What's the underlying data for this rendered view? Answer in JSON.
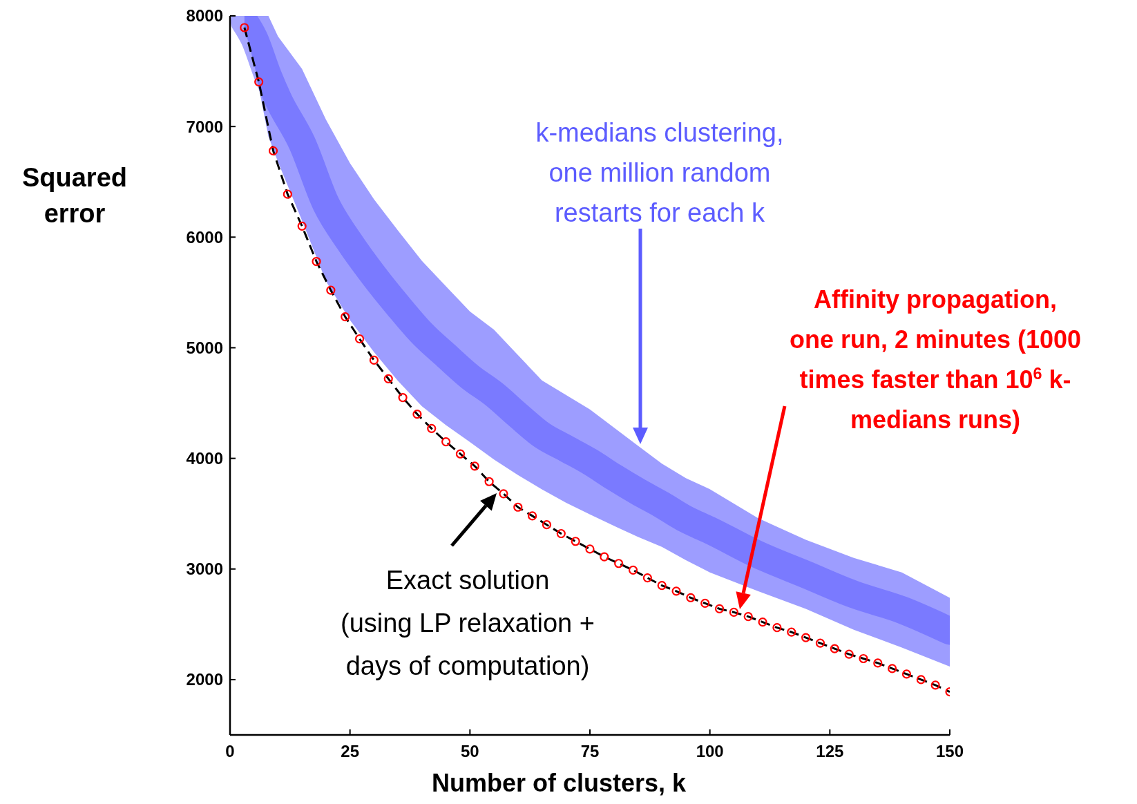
{
  "chart_data": {
    "type": "line",
    "xlabel": "Number of clusters, k",
    "ylabel": "Squared\nerror",
    "xlim": [
      0,
      150
    ],
    "ylim": [
      1500,
      8000
    ],
    "xticks": [
      0,
      25,
      50,
      75,
      100,
      125,
      150
    ],
    "yticks": [
      2000,
      3000,
      4000,
      5000,
      6000,
      7000,
      8000
    ],
    "series": [
      {
        "color": "#5c5cff",
        "x": [
          3,
          5,
          8,
          10,
          15,
          20,
          25,
          30,
          35,
          40,
          45,
          50,
          55,
          60,
          65,
          70,
          75,
          80,
          85,
          90,
          95,
          100,
          110,
          120,
          130,
          140,
          150
        ],
        "values": [
          7950,
          7800,
          7450,
          7250,
          6850,
          6300,
          5950,
          5650,
          5380,
          5130,
          4930,
          4737,
          4580,
          4390,
          4210,
          4090,
          3970,
          3830,
          3700,
          3580,
          3450,
          3350,
          3130,
          2950,
          2770,
          2630,
          2440
        ],
        "lower": [
          7894,
          7573,
          6911,
          6680,
          6150,
          5600,
          5250,
          4960,
          4700,
          4470,
          4300,
          4148,
          3990,
          3850,
          3720,
          3600,
          3493,
          3390,
          3290,
          3200,
          3080,
          2969,
          2800,
          2640,
          2450,
          2290,
          2118
        ],
        "upper": [
          8000,
          8000,
          8000,
          7815,
          7520,
          7062,
          6669,
          6342,
          6060,
          5785,
          5556,
          5327,
          5163,
          4934,
          4705,
          4574,
          4443,
          4279,
          4115,
          3952,
          3821,
          3722,
          3460,
          3264,
          3100,
          2969,
          2740
        ]
      },
      {
        "color": "#000000",
        "line_style": "dashed",
        "x": [
          3,
          6,
          9,
          12,
          15,
          18,
          21,
          24,
          27,
          30,
          33,
          36,
          39,
          42,
          45,
          48,
          51,
          54,
          57,
          60,
          63,
          66,
          69,
          72,
          75,
          78,
          81,
          84,
          87,
          90,
          93,
          96,
          99,
          102,
          105,
          108,
          111,
          114,
          117,
          120,
          123,
          126,
          129,
          132,
          135,
          138,
          141,
          144,
          147,
          150
        ],
        "values": [
          7894,
          7403,
          6780,
          6388,
          6100,
          5780,
          5520,
          5280,
          5080,
          4888,
          4720,
          4550,
          4400,
          4270,
          4150,
          4040,
          3930,
          3790,
          3680,
          3559,
          3480,
          3400,
          3320,
          3250,
          3180,
          3110,
          3050,
          2990,
          2920,
          2851,
          2800,
          2740,
          2690,
          2640,
          2609,
          2570,
          2520,
          2470,
          2430,
          2380,
          2330,
          2280,
          2230,
          2190,
          2150,
          2100,
          2050,
          2000,
          1950,
          1889
        ]
      },
      {
        "type": "scatter",
        "color": "#ff0000",
        "marker": "circle",
        "x": [
          3,
          6,
          9,
          12,
          15,
          18,
          21,
          24,
          27,
          30,
          33,
          36,
          39,
          42,
          45,
          48,
          51,
          54,
          57,
          60,
          63,
          66,
          69,
          72,
          75,
          78,
          81,
          84,
          87,
          90,
          93,
          96,
          99,
          102,
          105,
          108,
          111,
          114,
          117,
          120,
          123,
          126,
          129,
          132,
          135,
          138,
          141,
          144,
          147,
          150
        ],
        "values": [
          7894,
          7403,
          6780,
          6388,
          6100,
          5780,
          5520,
          5280,
          5080,
          4888,
          4720,
          4550,
          4400,
          4270,
          4150,
          4040,
          3930,
          3790,
          3680,
          3559,
          3480,
          3400,
          3320,
          3250,
          3180,
          3110,
          3050,
          2990,
          2920,
          2851,
          2800,
          2740,
          2690,
          2640,
          2609,
          2570,
          2520,
          2470,
          2430,
          2380,
          2330,
          2280,
          2230,
          2190,
          2150,
          2100,
          2050,
          2000,
          1950,
          1889
        ]
      }
    ],
    "annotations": [
      "k-medians clustering,\none million random\nrestarts for each k",
      "Exact solution\n(using LP relaxation +\ndays of computation)",
      "Affinity propagation,\none run, 2 minutes (1000\ntimes faster than 10$^{6}$ k-\nmedians runs)"
    ]
  }
}
